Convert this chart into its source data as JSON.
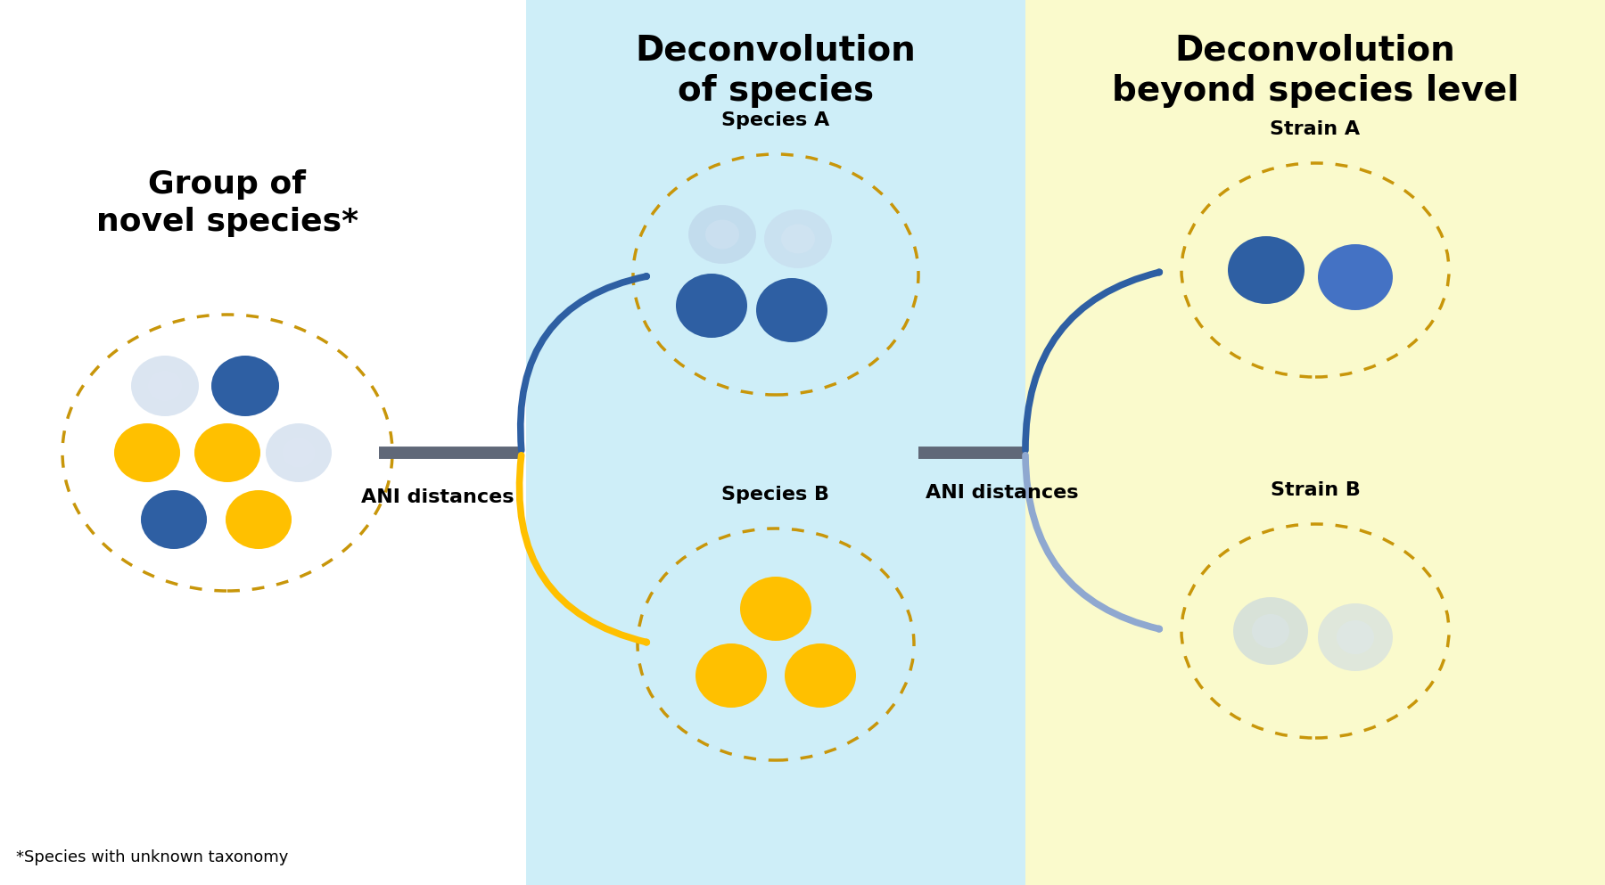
{
  "bg_color": "#ffffff",
  "panel_left_bg": "#ffffff",
  "panel_mid_bg": "#ceeef8",
  "panel_right_bg": "#fafacc",
  "title_mid": "Deconvolution\nof species",
  "title_right": "Deconvolution\nbeyond species level",
  "label_left": "Group of\nnovel species*",
  "label_speciesA": "Species A",
  "label_speciesB": "Species B",
  "label_strainA": "Strain A",
  "label_strainB": "Strain B",
  "label_ani1": "ANI distances",
  "label_ani2": "ANI distances",
  "label_footnote": "*Species with unknown taxonomy",
  "color_blue_dark": "#2e5fa3",
  "color_blue_mid": "#4472c4",
  "color_blue_light": "#b8cce4",
  "color_blue_vlight": "#c5d5ea",
  "color_orange": "#ffc000",
  "color_dashed_circle": "#c8960a",
  "color_arrow_blue": "#2e5fa3",
  "color_arrow_orange": "#ffc000",
  "color_arrow_gray": "#606878",
  "color_arrow_blue_light": "#8fa8d0",
  "title_fontsize": 28,
  "label_fontsize": 17,
  "sublabel_fontsize": 16,
  "footnote_fontsize": 13
}
